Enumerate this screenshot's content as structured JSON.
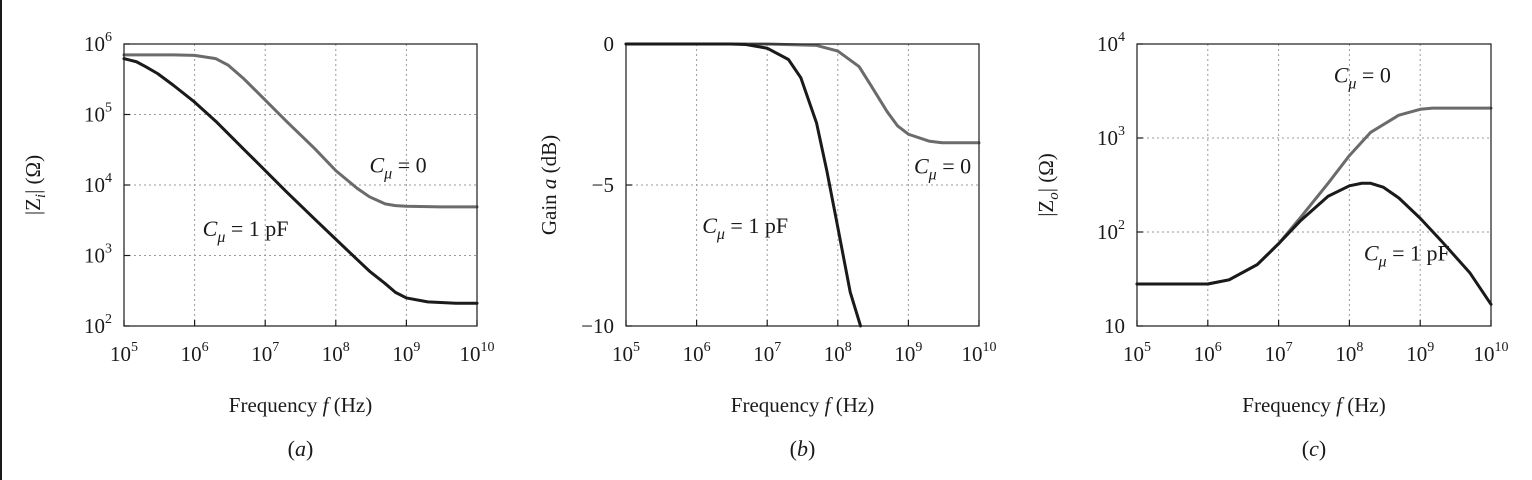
{
  "chart_data": [
    {
      "type": "line",
      "panel": "(a)",
      "panel_label": "a",
      "xlabel": "Frequency f (Hz)",
      "xlabel_parts": {
        "pre": "Frequency ",
        "var": "f",
        "post": " (Hz)"
      },
      "ylabel": "|Z_i| (Ω)",
      "xscale": "log",
      "yscale": "log",
      "xlim": [
        100000,
        10000000000
      ],
      "ylim": [
        100,
        1000000
      ],
      "x_ticks": [
        {
          "value": 100000,
          "base": "10",
          "exp": "5"
        },
        {
          "value": 1000000,
          "base": "10",
          "exp": "6"
        },
        {
          "value": 10000000,
          "base": "10",
          "exp": "7"
        },
        {
          "value": 100000000,
          "base": "10",
          "exp": "8"
        },
        {
          "value": 1000000000,
          "base": "10",
          "exp": "9"
        },
        {
          "value": 10000000000,
          "base": "10",
          "exp": "10"
        }
      ],
      "y_ticks": [
        {
          "value": 100,
          "base": "10",
          "exp": "2"
        },
        {
          "value": 1000,
          "base": "10",
          "exp": "3"
        },
        {
          "value": 10000,
          "base": "10",
          "exp": "4"
        },
        {
          "value": 100000,
          "base": "10",
          "exp": "5"
        },
        {
          "value": 1000000,
          "base": "10",
          "exp": "6"
        }
      ],
      "grid": true,
      "series": [
        {
          "label": "C_μ = 0",
          "color": "#6b6b6b",
          "points": [
            [
              100000,
              700000
            ],
            [
              200000,
              700000
            ],
            [
              500000,
              700000
            ],
            [
              1000000,
              690000
            ],
            [
              2000000,
              620000
            ],
            [
              3000000,
              500000
            ],
            [
              5000000,
              320000
            ],
            [
              10000000,
              160000
            ],
            [
              20000000,
              80000
            ],
            [
              50000000,
              33000
            ],
            [
              100000000,
              16000
            ],
            [
              200000000,
              9000
            ],
            [
              300000000,
              6800
            ],
            [
              500000000,
              5400
            ],
            [
              700000000,
              5100
            ],
            [
              1000000000,
              5000
            ],
            [
              3000000000,
              4900
            ],
            [
              10000000000,
              4900
            ]
          ]
        },
        {
          "label": "C_μ = 1 pF",
          "color": "#1a1a1a",
          "points": [
            [
              100000,
              620000
            ],
            [
              150000,
              560000
            ],
            [
              200000,
              480000
            ],
            [
              300000,
              380000
            ],
            [
              500000,
              260000
            ],
            [
              1000000,
              150000
            ],
            [
              2000000,
              80000
            ],
            [
              5000000,
              32000
            ],
            [
              10000000,
              16000
            ],
            [
              20000000,
              8000
            ],
            [
              50000000,
              3300
            ],
            [
              100000000,
              1700
            ],
            [
              200000000,
              880
            ],
            [
              300000000,
              600
            ],
            [
              500000000,
              400
            ],
            [
              700000000,
              300
            ],
            [
              1000000000,
              250
            ],
            [
              2000000000,
              220
            ],
            [
              5000000000,
              210
            ],
            [
              10000000000,
              210
            ]
          ]
        }
      ],
      "annotations": [
        {
          "series": 0,
          "text_symbol": "C",
          "text_sub": "μ",
          "text_rest": " = 0",
          "x": 300000000,
          "y": 15000
        },
        {
          "series": 1,
          "text_symbol": "C",
          "text_sub": "μ",
          "text_rest": " = 1 pF",
          "x": 1300000,
          "y": 1900
        }
      ]
    },
    {
      "type": "line",
      "panel": "(b)",
      "panel_label": "b",
      "xlabel": "Frequency f (Hz)",
      "xlabel_parts": {
        "pre": "Frequency ",
        "var": "f",
        "post": " (Hz)"
      },
      "ylabel": "Gain a (dB)",
      "xscale": "log",
      "yscale": "linear",
      "xlim": [
        100000,
        10000000000
      ],
      "ylim": [
        -10,
        0
      ],
      "x_ticks": [
        {
          "value": 100000,
          "base": "10",
          "exp": "5"
        },
        {
          "value": 1000000,
          "base": "10",
          "exp": "6"
        },
        {
          "value": 10000000,
          "base": "10",
          "exp": "7"
        },
        {
          "value": 100000000,
          "base": "10",
          "exp": "8"
        },
        {
          "value": 1000000000,
          "base": "10",
          "exp": "9"
        },
        {
          "value": 10000000000,
          "base": "10",
          "exp": "10"
        }
      ],
      "y_ticks": [
        {
          "value": 0,
          "text": "0"
        },
        {
          "value": -5,
          "text": "−5"
        },
        {
          "value": -10,
          "text": "−10"
        }
      ],
      "grid": true,
      "series": [
        {
          "label": "C_μ = 0",
          "color": "#6b6b6b",
          "points": [
            [
              100000,
              0
            ],
            [
              10000000,
              0
            ],
            [
              50000000,
              -0.05
            ],
            [
              100000000,
              -0.25
            ],
            [
              200000000,
              -0.8
            ],
            [
              300000000,
              -1.5
            ],
            [
              500000000,
              -2.4
            ],
            [
              700000000,
              -2.9
            ],
            [
              1000000000,
              -3.2
            ],
            [
              2000000000,
              -3.45
            ],
            [
              3000000000,
              -3.5
            ],
            [
              10000000000,
              -3.5
            ]
          ]
        },
        {
          "label": "C_μ = 1 pF",
          "color": "#1a1a1a",
          "points": [
            [
              100000,
              0
            ],
            [
              3000000,
              0
            ],
            [
              5000000,
              -0.02
            ],
            [
              10000000,
              -0.15
            ],
            [
              20000000,
              -0.55
            ],
            [
              30000000,
              -1.2
            ],
            [
              50000000,
              -2.8
            ],
            [
              70000000,
              -4.5
            ],
            [
              100000000,
              -6.5
            ],
            [
              150000000,
              -8.8
            ],
            [
              210000000,
              -10
            ]
          ]
        }
      ],
      "annotations": [
        {
          "series": 0,
          "text_symbol": "C",
          "text_sub": "μ",
          "text_rest": " = 0",
          "x": 1200000000,
          "y": -4.6
        },
        {
          "series": 1,
          "text_symbol": "C",
          "text_sub": "μ",
          "text_rest": " = 1 pF",
          "x": 1200000,
          "y": -6.7
        }
      ]
    },
    {
      "type": "line",
      "panel": "(c)",
      "panel_label": "c",
      "xlabel": "Frequency f (Hz)",
      "xlabel_parts": {
        "pre": "Frequency ",
        "var": "f",
        "post": " (Hz)"
      },
      "ylabel": "|Z_o| (Ω)",
      "xscale": "log",
      "yscale": "log",
      "xlim": [
        100000,
        10000000000
      ],
      "ylim": [
        10,
        10000
      ],
      "x_ticks": [
        {
          "value": 100000,
          "base": "10",
          "exp": "5"
        },
        {
          "value": 1000000,
          "base": "10",
          "exp": "6"
        },
        {
          "value": 10000000,
          "base": "10",
          "exp": "7"
        },
        {
          "value": 100000000,
          "base": "10",
          "exp": "8"
        },
        {
          "value": 1000000000,
          "base": "10",
          "exp": "9"
        },
        {
          "value": 10000000000,
          "base": "10",
          "exp": "10"
        }
      ],
      "y_ticks": [
        {
          "value": 10,
          "base": "10",
          "exp": ""
        },
        {
          "value": 100,
          "base": "10",
          "exp": "2"
        },
        {
          "value": 1000,
          "base": "10",
          "exp": "3"
        },
        {
          "value": 10000,
          "base": "10",
          "exp": "4"
        }
      ],
      "grid": true,
      "series": [
        {
          "label": "C_μ = 0",
          "color": "#6b6b6b",
          "points": [
            [
              100000,
              28
            ],
            [
              1000000,
              28
            ],
            [
              2000000,
              31
            ],
            [
              5000000,
              45
            ],
            [
              10000000,
              75
            ],
            [
              20000000,
              140
            ],
            [
              50000000,
              330
            ],
            [
              100000000,
              650
            ],
            [
              200000000,
              1150
            ],
            [
              500000000,
              1750
            ],
            [
              1000000000,
              2020
            ],
            [
              1500000000,
              2080
            ],
            [
              10000000000,
              2080
            ]
          ]
        },
        {
          "label": "C_μ = 1 pF",
          "color": "#1a1a1a",
          "points": [
            [
              100000,
              28
            ],
            [
              1000000,
              28
            ],
            [
              2000000,
              31
            ],
            [
              5000000,
              45
            ],
            [
              10000000,
              75
            ],
            [
              20000000,
              130
            ],
            [
              50000000,
              240
            ],
            [
              100000000,
              310
            ],
            [
              150000000,
              330
            ],
            [
              200000000,
              330
            ],
            [
              300000000,
              300
            ],
            [
              500000000,
              230
            ],
            [
              1000000000,
              140
            ],
            [
              2000000000,
              80
            ],
            [
              5000000000,
              37
            ],
            [
              10000000000,
              17
            ]
          ]
        }
      ],
      "annotations": [
        {
          "series": 0,
          "text_symbol": "C",
          "text_sub": "μ",
          "text_rest": " = 0",
          "x": 60000000,
          "y": 3900
        },
        {
          "series": 1,
          "text_symbol": "C",
          "text_sub": "μ",
          "text_rest": " = 1 pF",
          "x": 160000000,
          "y": 50
        }
      ]
    }
  ]
}
